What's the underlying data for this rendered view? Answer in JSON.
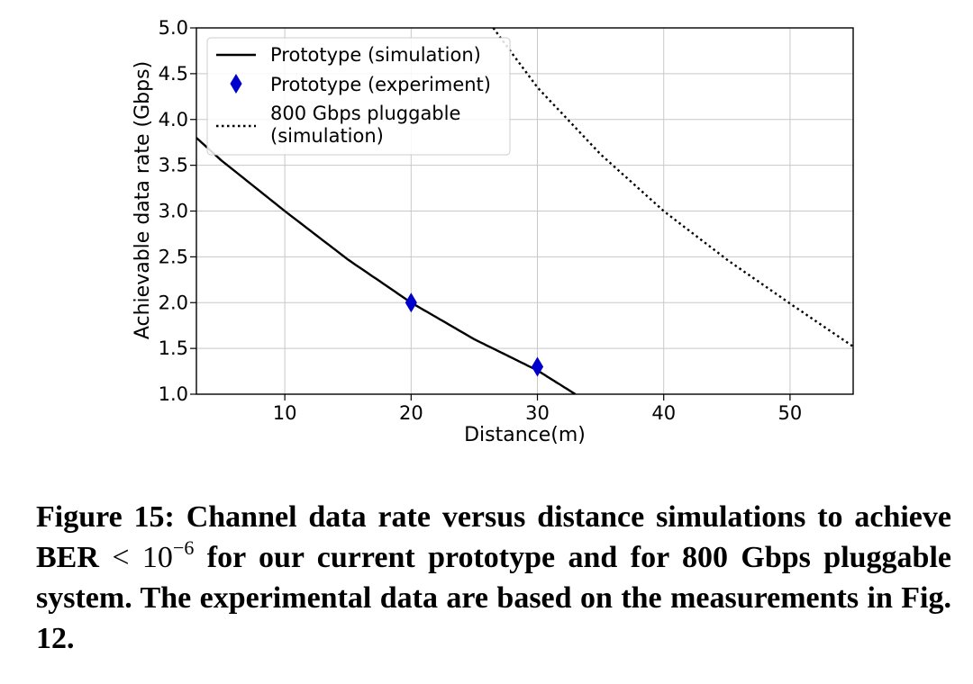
{
  "chart_data": {
    "type": "line",
    "xlabel": "Distance(m)",
    "ylabel": "Achievable data rate (Gbps)",
    "xlim": [
      3,
      55
    ],
    "ylim": [
      1.0,
      5.0
    ],
    "xticks": [
      10,
      20,
      30,
      40,
      50
    ],
    "yticks": [
      "1.0",
      "1.5",
      "2.0",
      "2.5",
      "3.0",
      "3.5",
      "4.0",
      "4.5",
      "5.0"
    ],
    "grid": true,
    "legend_position": "top-left",
    "series": [
      {
        "name": "Prototype (simulation)",
        "style": "solid",
        "color": "#000000",
        "x": [
          3,
          5,
          10,
          15,
          20,
          25,
          30,
          33
        ],
        "y": [
          3.8,
          3.55,
          3.0,
          2.47,
          2.0,
          1.6,
          1.26,
          1.0
        ]
      },
      {
        "name": "Prototype (experiment)",
        "style": "marker",
        "marker": "thin_diamond",
        "color": "#0000cc",
        "x": [
          20,
          30
        ],
        "y": [
          2.0,
          1.3
        ]
      },
      {
        "name": "800 Gbps pluggable (simulation)",
        "name_lines": [
          "800 Gbps pluggable",
          "(simulation)"
        ],
        "style": "dotted",
        "color": "#000000",
        "x": [
          26.5,
          30,
          35,
          40,
          45,
          50,
          55
        ],
        "y": [
          5.0,
          4.35,
          3.62,
          3.0,
          2.47,
          1.99,
          1.52
        ]
      }
    ]
  },
  "caption": {
    "part1": "Figure 15: Channel data rate versus distance simulations to achieve BER ",
    "math_lt": "<",
    "math_base": " 10",
    "math_exp": "−6",
    "part2": " for our current prototype and for 800 Gbps pluggable system. The experimental data are based on the measurements in Fig. 12."
  }
}
